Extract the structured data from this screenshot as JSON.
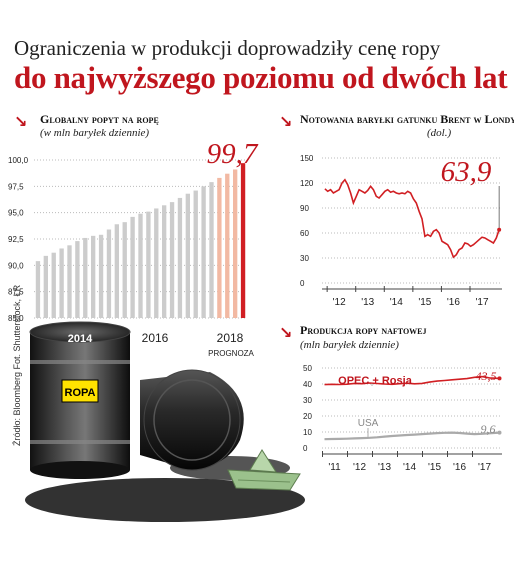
{
  "headline": {
    "line1": "Ograniczenia w produkcji doprowadziły cenę ropy",
    "line2": "do najwyższego poziomu od dwóch lat"
  },
  "source": "Źródło: Bloomberg Fot. Shutterstock, ŁR",
  "barrel_label": "ROPA",
  "colors": {
    "red": "#c0161e",
    "gray": "#cccccc",
    "pink": "#f2b9a3"
  },
  "chart_data": [
    {
      "type": "bar",
      "title": "Globalny popyt na ropę",
      "subtitle": "(w mln baryłek dziennie)",
      "highlight_value_label": "99,7",
      "forecast_label": "PROGNOZA",
      "y_tick_labels": [
        "100,0",
        "97,5",
        "95,0",
        "92,5",
        "90,0",
        "87,5",
        "85,0"
      ],
      "x_labels": [
        "2014",
        "2016",
        "2018"
      ],
      "ylim": [
        85,
        100
      ],
      "values": [
        90.4,
        90.9,
        91.2,
        91.6,
        91.9,
        92.3,
        92.6,
        92.8,
        92.9,
        93.4,
        93.9,
        94.1,
        94.6,
        94.9,
        95.1,
        95.4,
        95.7,
        96.0,
        96.4,
        96.8,
        97.1,
        97.5,
        97.9,
        98.3,
        98.7,
        99.1,
        99.7
      ],
      "forecast_from_index": 23
    },
    {
      "type": "line",
      "title": "Notowania baryłki gatunku Brent w Londynie",
      "subtitle": "(dol.)",
      "last_value_label": "63,9",
      "y_ticks": [
        0,
        30,
        60,
        90,
        120,
        150
      ],
      "x_labels": [
        "'12",
        "'13",
        "'14",
        "'15",
        "'16",
        "'17"
      ],
      "ylim": [
        0,
        150
      ],
      "x": [
        2011.5,
        2011.6,
        2011.7,
        2011.8,
        2011.9,
        2012.0,
        2012.1,
        2012.2,
        2012.3,
        2012.4,
        2012.5,
        2012.6,
        2012.7,
        2012.8,
        2012.9,
        2013.0,
        2013.1,
        2013.2,
        2013.3,
        2013.4,
        2013.5,
        2013.6,
        2013.7,
        2013.8,
        2013.9,
        2014.0,
        2014.1,
        2014.2,
        2014.3,
        2014.4,
        2014.5,
        2014.6,
        2014.7,
        2014.8,
        2014.9,
        2015.0,
        2015.1,
        2015.2,
        2015.3,
        2015.4,
        2015.5,
        2015.6,
        2015.7,
        2015.8,
        2015.9,
        2016.0,
        2016.1,
        2016.2,
        2016.3,
        2016.4,
        2016.5,
        2016.6,
        2016.7,
        2016.8,
        2016.9,
        2017.0,
        2017.1,
        2017.2,
        2017.3,
        2017.4,
        2017.5,
        2017.6
      ],
      "values": [
        113,
        110,
        112,
        108,
        110,
        112,
        120,
        124,
        118,
        108,
        96,
        104,
        112,
        110,
        108,
        111,
        116,
        112,
        104,
        102,
        106,
        110,
        112,
        109,
        110,
        108,
        107,
        108,
        107,
        110,
        108,
        101,
        96,
        86,
        77,
        56,
        58,
        56,
        62,
        64,
        60,
        50,
        48,
        46,
        40,
        31,
        34,
        40,
        42,
        48,
        47,
        44,
        46,
        49,
        52,
        55,
        54,
        52,
        50,
        48,
        54,
        63.9
      ]
    },
    {
      "type": "line",
      "title": "Produkcja ropy naftowej",
      "subtitle": "(mln baryłek dziennie)",
      "y_ticks": [
        0,
        10,
        20,
        30,
        40,
        50
      ],
      "x_labels": [
        "'11",
        "'12",
        "'13",
        "'14",
        "'15",
        "'16",
        "'17"
      ],
      "ylim": [
        0,
        50
      ],
      "x": [
        2010.6,
        2010.9,
        2011.2,
        2011.5,
        2011.8,
        2012.1,
        2012.4,
        2012.7,
        2013.0,
        2013.3,
        2013.6,
        2013.9,
        2014.2,
        2014.5,
        2014.8,
        2015.1,
        2015.4,
        2015.7,
        2016.0,
        2016.3,
        2016.6,
        2016.9,
        2017.2,
        2017.6
      ],
      "series": [
        {
          "name": "OPEC + Rosja",
          "last_label": "43,5",
          "values": [
            39.6,
            39.8,
            39.7,
            39.9,
            40.4,
            40.2,
            40.6,
            40.3,
            40.0,
            39.8,
            40.2,
            40.5,
            40.1,
            40.4,
            41.2,
            41.8,
            42.2,
            42.6,
            43.0,
            43.4,
            44.2,
            44.6,
            43.8,
            43.5
          ]
        },
        {
          "name": "USA",
          "last_label": "9,6",
          "values": [
            5.5,
            5.6,
            5.7,
            5.8,
            6.0,
            6.2,
            6.4,
            6.7,
            7.1,
            7.5,
            7.8,
            8.1,
            8.4,
            8.7,
            9.0,
            9.3,
            9.5,
            9.6,
            9.4,
            9.0,
            8.7,
            8.9,
            9.2,
            9.6
          ]
        }
      ]
    }
  ]
}
